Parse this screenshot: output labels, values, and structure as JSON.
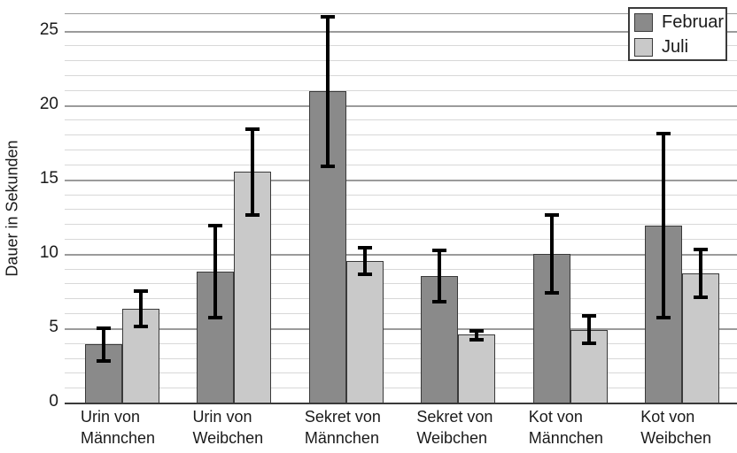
{
  "chart_data": {
    "type": "bar",
    "title": "",
    "ylabel": "Dauer in Sekunden",
    "xlabel": "",
    "ylim": [
      0,
      26.1
    ],
    "yticks": [
      0,
      5,
      10,
      15,
      20,
      25
    ],
    "minor_grid_step": 1,
    "grid": true,
    "legend_position": "top-right",
    "categories": [
      [
        "Urin von",
        "Männchen"
      ],
      [
        "Urin von",
        "Weibchen"
      ],
      [
        "Sekret von",
        "Männchen"
      ],
      [
        "Sekret von",
        "Weibchen"
      ],
      [
        "Kot von",
        "Männchen"
      ],
      [
        "Kot von",
        "Weibchen"
      ]
    ],
    "series": [
      {
        "name": "Februar",
        "color": "#8a8a8a",
        "values": [
          3.9,
          8.8,
          20.9,
          8.5,
          10.0,
          11.9
        ],
        "error_low": [
          2.8,
          5.7,
          15.9,
          6.8,
          7.4,
          5.7
        ],
        "error_high": [
          5.0,
          11.9,
          25.9,
          10.2,
          12.6,
          18.1
        ]
      },
      {
        "name": "Juli",
        "color": "#c9c9c9",
        "values": [
          6.3,
          15.5,
          9.5,
          4.6,
          4.9,
          8.7
        ],
        "error_low": [
          5.1,
          12.6,
          8.6,
          4.2,
          4.0,
          7.1
        ],
        "error_high": [
          7.5,
          18.4,
          10.4,
          4.8,
          5.8,
          10.3
        ]
      }
    ],
    "colors": {
      "bar_border": "#3a3a3a",
      "error_bar": "#000000",
      "major_grid": "#9b9b9b",
      "minor_grid": "#d8d8d8",
      "axis_line": "#3a3a3a",
      "background": "#ffffff",
      "text": "#1a1a1a"
    }
  }
}
